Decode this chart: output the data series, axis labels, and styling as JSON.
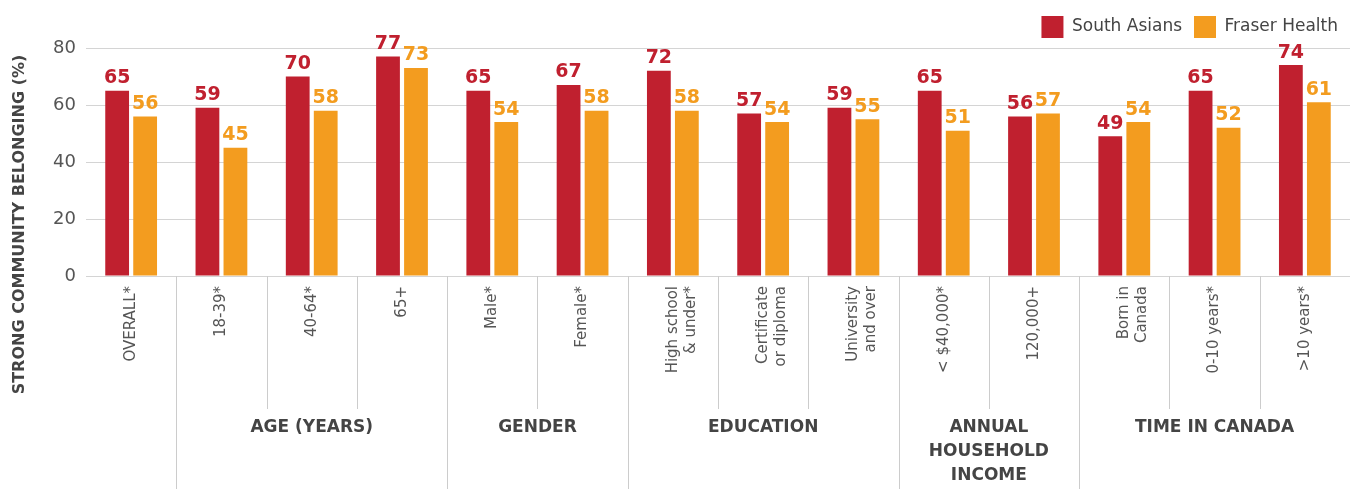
{
  "chart_data": {
    "type": "bar",
    "ylabel": "STRONG COMMUNITY BELONGING (%)",
    "categories": [
      "OVERALL*",
      "18-39*",
      "40-64*",
      "65+",
      "Male*",
      "Female*",
      "High school & under*",
      "Certificate or diploma",
      "University and over",
      "< $40,000*",
      "120,000+",
      "Born in Canada",
      "0-10 years*",
      ">10 years*"
    ],
    "series": [
      {
        "name": "South Asians",
        "color": "#c0202f",
        "values": [
          65,
          59,
          70,
          77,
          65,
          67,
          72,
          57,
          59,
          65,
          56,
          49,
          65,
          74
        ]
      },
      {
        "name": "Fraser Health",
        "color": "#f39c1f",
        "values": [
          56,
          45,
          58,
          73,
          54,
          58,
          58,
          54,
          55,
          51,
          57,
          54,
          52,
          61
        ]
      }
    ],
    "ylim": [
      0,
      80
    ],
    "yticks": [
      0,
      20,
      40,
      60,
      80
    ],
    "grid": "y",
    "legend": "top right",
    "data_labels": true,
    "annotations": [
      "AGE (YEARS)",
      "GENDER",
      "EDUCATION",
      "ANNUAL HOUSEHOLD INCOME",
      "TIME IN CANADA"
    ]
  }
}
